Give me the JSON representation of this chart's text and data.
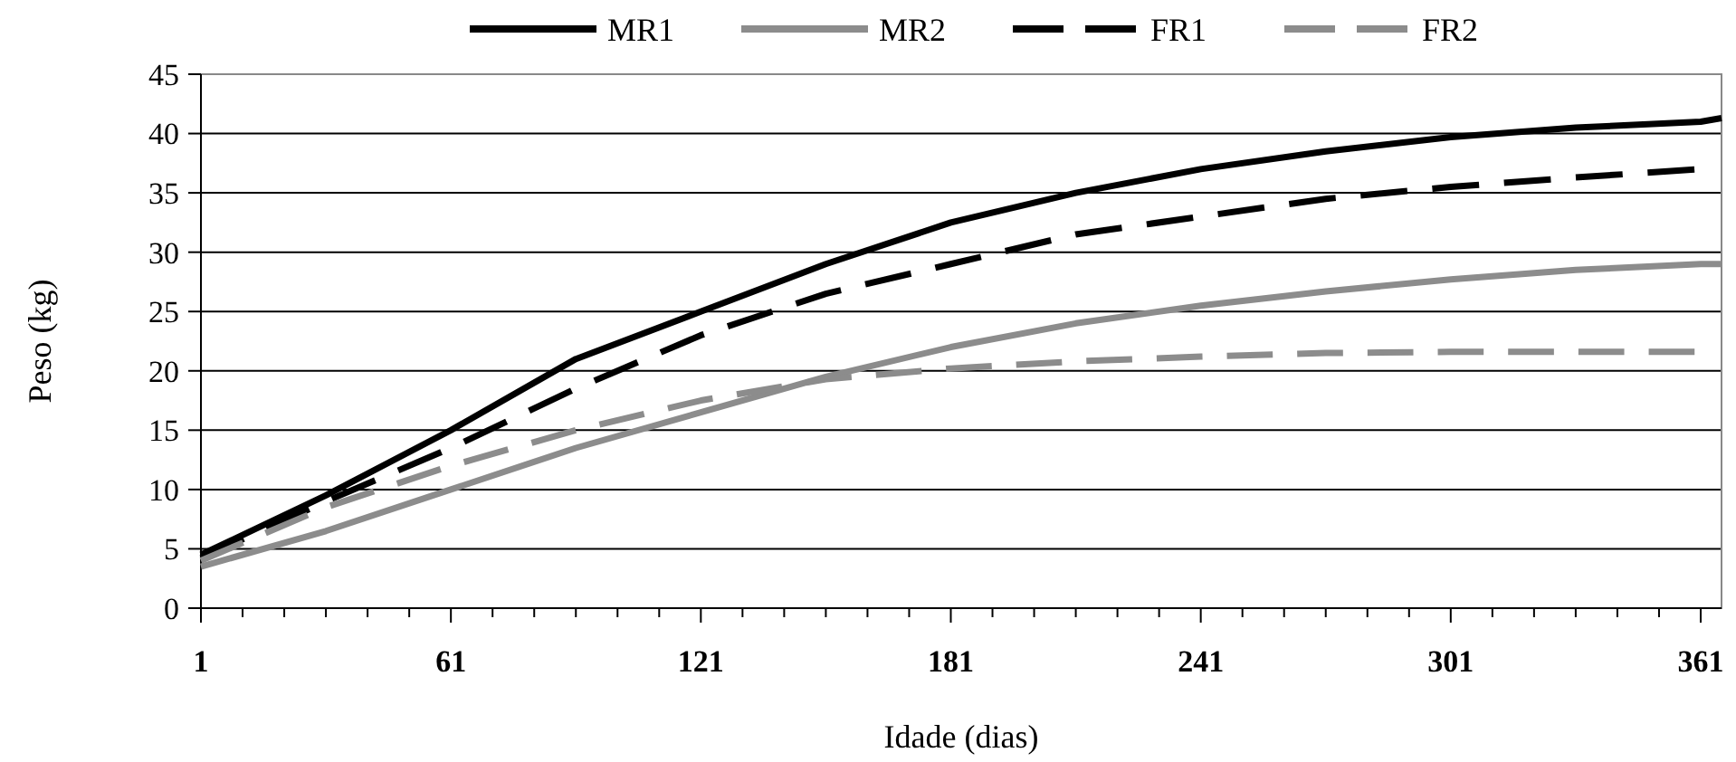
{
  "chart_data": {
    "type": "line",
    "xlabel": "Idade (dias)",
    "ylabel": "Peso (kg)",
    "xlim": [
      1,
      366
    ],
    "ylim": [
      0,
      45
    ],
    "xticks": [
      1,
      {
        "value": 11,
        "label": null
      },
      {
        "value": 21,
        "label": null
      },
      {
        "value": 31,
        "label": null
      },
      {
        "value": 41,
        "label": null
      },
      {
        "value": 51,
        "label": null
      },
      61,
      {
        "value": 71,
        "label": null
      },
      {
        "value": 81,
        "label": null
      },
      {
        "value": 91,
        "label": null
      },
      {
        "value": 101,
        "label": null
      },
      {
        "value": 111,
        "label": null
      },
      121,
      {
        "value": 131,
        "label": null
      },
      {
        "value": 141,
        "label": null
      },
      {
        "value": 151,
        "label": null
      },
      {
        "value": 161,
        "label": null
      },
      {
        "value": 171,
        "label": null
      },
      181,
      {
        "value": 191,
        "label": null
      },
      {
        "value": 201,
        "label": null
      },
      {
        "value": 211,
        "label": null
      },
      {
        "value": 221,
        "label": null
      },
      {
        "value": 231,
        "label": null
      },
      241,
      {
        "value": 251,
        "label": null
      },
      {
        "value": 261,
        "label": null
      },
      {
        "value": 271,
        "label": null
      },
      {
        "value": 281,
        "label": null
      },
      {
        "value": 291,
        "label": null
      },
      301,
      {
        "value": 311,
        "label": null
      },
      {
        "value": 321,
        "label": null
      },
      {
        "value": 331,
        "label": null
      },
      {
        "value": 341,
        "label": null
      },
      {
        "value": 351,
        "label": null
      },
      361
    ],
    "yticks": [
      0,
      5,
      10,
      15,
      20,
      25,
      30,
      35,
      40,
      45
    ],
    "grid": "y",
    "legend": "top",
    "marker": "none",
    "x": [
      1,
      31,
      61,
      91,
      121,
      151,
      181,
      211,
      241,
      271,
      301,
      331,
      361,
      366
    ],
    "series": [
      {
        "name": "MR1",
        "color": "#000000",
        "line_style": "solid",
        "values": [
          4.5,
          9.5,
          15,
          21,
          25,
          29,
          32.5,
          35,
          37,
          38.5,
          39.7,
          40.5,
          41,
          41.3
        ]
      },
      {
        "name": "MR2",
        "color": "#8c8c8c",
        "line_style": "solid",
        "values": [
          3.5,
          6.5,
          10,
          13.5,
          16.5,
          19.5,
          22,
          24,
          25.5,
          26.7,
          27.7,
          28.5,
          29,
          29
        ]
      },
      {
        "name": "FR1",
        "color": "#000000",
        "line_style": "dashed",
        "values": [
          4.2,
          9,
          13.5,
          18.5,
          23,
          26.5,
          29,
          31.5,
          33,
          34.5,
          35.5,
          36.3,
          37,
          null
        ]
      },
      {
        "name": "FR2",
        "color": "#8c8c8c",
        "line_style": "dashed",
        "values": [
          4,
          8.5,
          12,
          15,
          17.5,
          19.3,
          20.2,
          20.8,
          21.2,
          21.5,
          21.6,
          21.6,
          21.6,
          null
        ]
      }
    ]
  }
}
